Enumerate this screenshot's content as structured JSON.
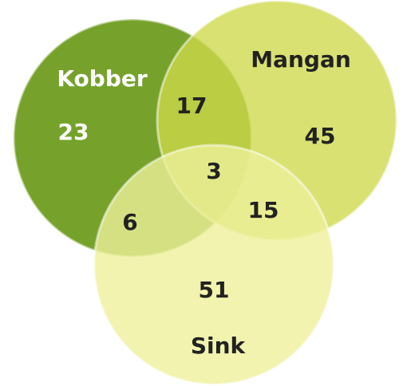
{
  "chart_data": {
    "type": "venn",
    "sets": [
      {
        "name": "Kobber",
        "color": "#76a22c"
      },
      {
        "name": "Mangan",
        "color": "#cdd84a"
      },
      {
        "name": "Sink",
        "color": "#eef09a"
      }
    ],
    "values": [
      23,
      45,
      51,
      17,
      6,
      15,
      3
    ]
  }
}
